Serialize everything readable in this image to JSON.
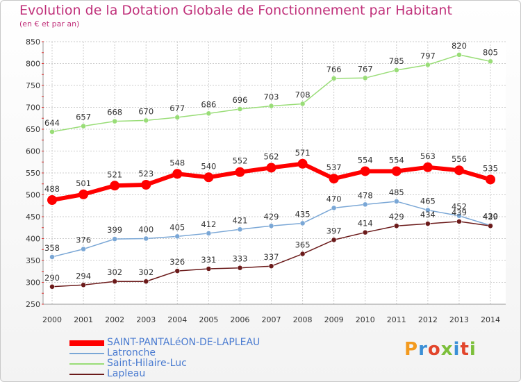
{
  "title": "Evolution de la Dotation Globale de Fonctionnement par Habitant",
  "subtitle": "(en € et par an)",
  "logo_text": "Proxiti",
  "colors": {
    "title": "#c0307a",
    "grid": "#cccccc",
    "axis_text": "#333333",
    "legend_text": "#4a7bd0"
  },
  "chart_data": {
    "type": "line",
    "title": "Evolution de la Dotation Globale de Fonctionnement par Habitant",
    "subtitle": "(en € et par an)",
    "categories": [
      "2000",
      "2001",
      "2002",
      "2003",
      "2004",
      "2005",
      "2006",
      "2007",
      "2008",
      "2009",
      "2010",
      "2011",
      "2012",
      "2013",
      "2014"
    ],
    "ylim": [
      250,
      850
    ],
    "yticks": [
      250,
      300,
      350,
      400,
      450,
      500,
      550,
      600,
      650,
      700,
      750,
      800,
      850
    ],
    "grid": true,
    "legend_position": "bottom-left",
    "series": [
      {
        "name": "SAINT-PANTALéON-DE-LAPLEAU",
        "color": "#ff0000",
        "values": [
          488,
          501,
          521,
          523,
          548,
          540,
          552,
          562,
          571,
          537,
          554,
          554,
          563,
          556,
          535
        ]
      },
      {
        "name": "Latronche",
        "color": "#7aa7d6",
        "values": [
          358,
          376,
          399,
          400,
          405,
          412,
          421,
          429,
          435,
          470,
          478,
          485,
          465,
          452,
          430
        ]
      },
      {
        "name": "Saint-Hilaire-Luc",
        "color": "#99dd77",
        "values": [
          644,
          657,
          668,
          670,
          677,
          686,
          696,
          703,
          708,
          766,
          767,
          785,
          797,
          820,
          805
        ]
      },
      {
        "name": "Lapleau",
        "color": "#6b1a1a",
        "values": [
          290,
          294,
          302,
          302,
          326,
          331,
          333,
          337,
          365,
          397,
          414,
          429,
          434,
          439,
          429
        ]
      }
    ]
  }
}
